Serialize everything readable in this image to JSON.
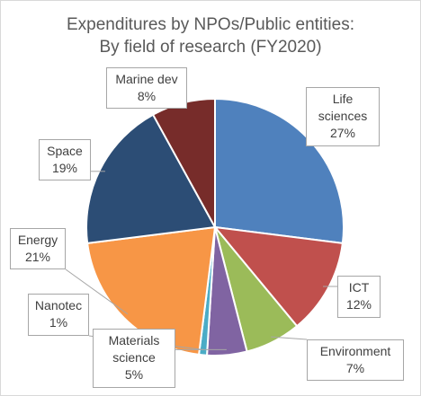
{
  "chart_data": {
    "type": "pie",
    "title": [
      "Expenditures by NPOs/Public entities:",
      "By field of research (FY2020)"
    ],
    "categories": [
      "Life sciences",
      "ICT",
      "Environment",
      "Materials science",
      "Nanotec",
      "Energy",
      "Space",
      "Marine dev"
    ],
    "values": [
      27,
      12,
      7,
      5,
      1,
      21,
      19,
      8
    ],
    "labels": [
      [
        "Life",
        "sciences",
        "27%"
      ],
      [
        "ICT",
        "12%"
      ],
      [
        "Environment",
        "7%"
      ],
      [
        "Materials",
        "science",
        "5%"
      ],
      [
        "Nanotec",
        "1%"
      ],
      [
        "Energy",
        "21%"
      ],
      [
        "Space",
        "19%"
      ],
      [
        "Marine dev",
        "8%"
      ]
    ],
    "colors": [
      "#4f81bd",
      "#c0504d",
      "#9bbb59",
      "#8064a2",
      "#4bacc6",
      "#f79646",
      "#2c4d75",
      "#772c2a"
    ],
    "start_angle_deg": 0,
    "direction": "clockwise",
    "legend": "none"
  }
}
